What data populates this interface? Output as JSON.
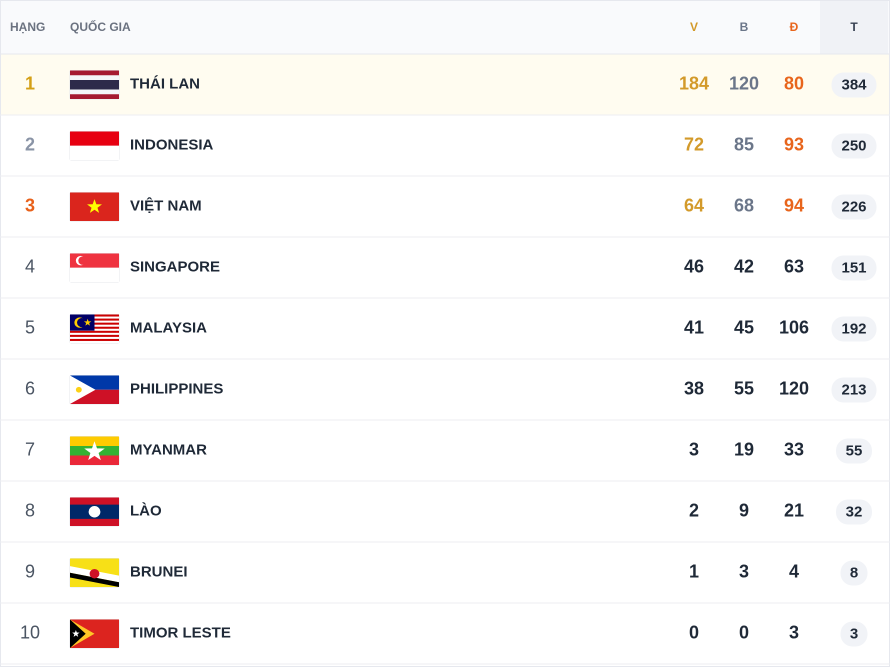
{
  "header": {
    "rank": "HẠNG",
    "country": "QUỐC GIA",
    "gold": "V",
    "silver": "B",
    "bronze": "Đ",
    "total": "T"
  },
  "rows": [
    {
      "rank": 1,
      "country": "THÁI LAN",
      "gold": 184,
      "silver": 120,
      "bronze": 80,
      "total": 384
    },
    {
      "rank": 2,
      "country": "INDONESIA",
      "gold": 72,
      "silver": 85,
      "bronze": 93,
      "total": 250
    },
    {
      "rank": 3,
      "country": "VIỆT NAM",
      "gold": 64,
      "silver": 68,
      "bronze": 94,
      "total": 226
    },
    {
      "rank": 4,
      "country": "SINGAPORE",
      "gold": 46,
      "silver": 42,
      "bronze": 63,
      "total": 151
    },
    {
      "rank": 5,
      "country": "MALAYSIA",
      "gold": 41,
      "silver": 45,
      "bronze": 106,
      "total": 192
    },
    {
      "rank": 6,
      "country": "PHILIPPINES",
      "gold": 38,
      "silver": 55,
      "bronze": 120,
      "total": 213
    },
    {
      "rank": 7,
      "country": "MYANMAR",
      "gold": 3,
      "silver": 19,
      "bronze": 33,
      "total": 55
    },
    {
      "rank": 8,
      "country": "LÀO",
      "gold": 2,
      "silver": 9,
      "bronze": 21,
      "total": 32
    },
    {
      "rank": 9,
      "country": "BRUNEI",
      "gold": 1,
      "silver": 3,
      "bronze": 4,
      "total": 8
    },
    {
      "rank": 10,
      "country": "TIMOR LESTE",
      "gold": 0,
      "silver": 0,
      "bronze": 3,
      "total": 3
    }
  ]
}
